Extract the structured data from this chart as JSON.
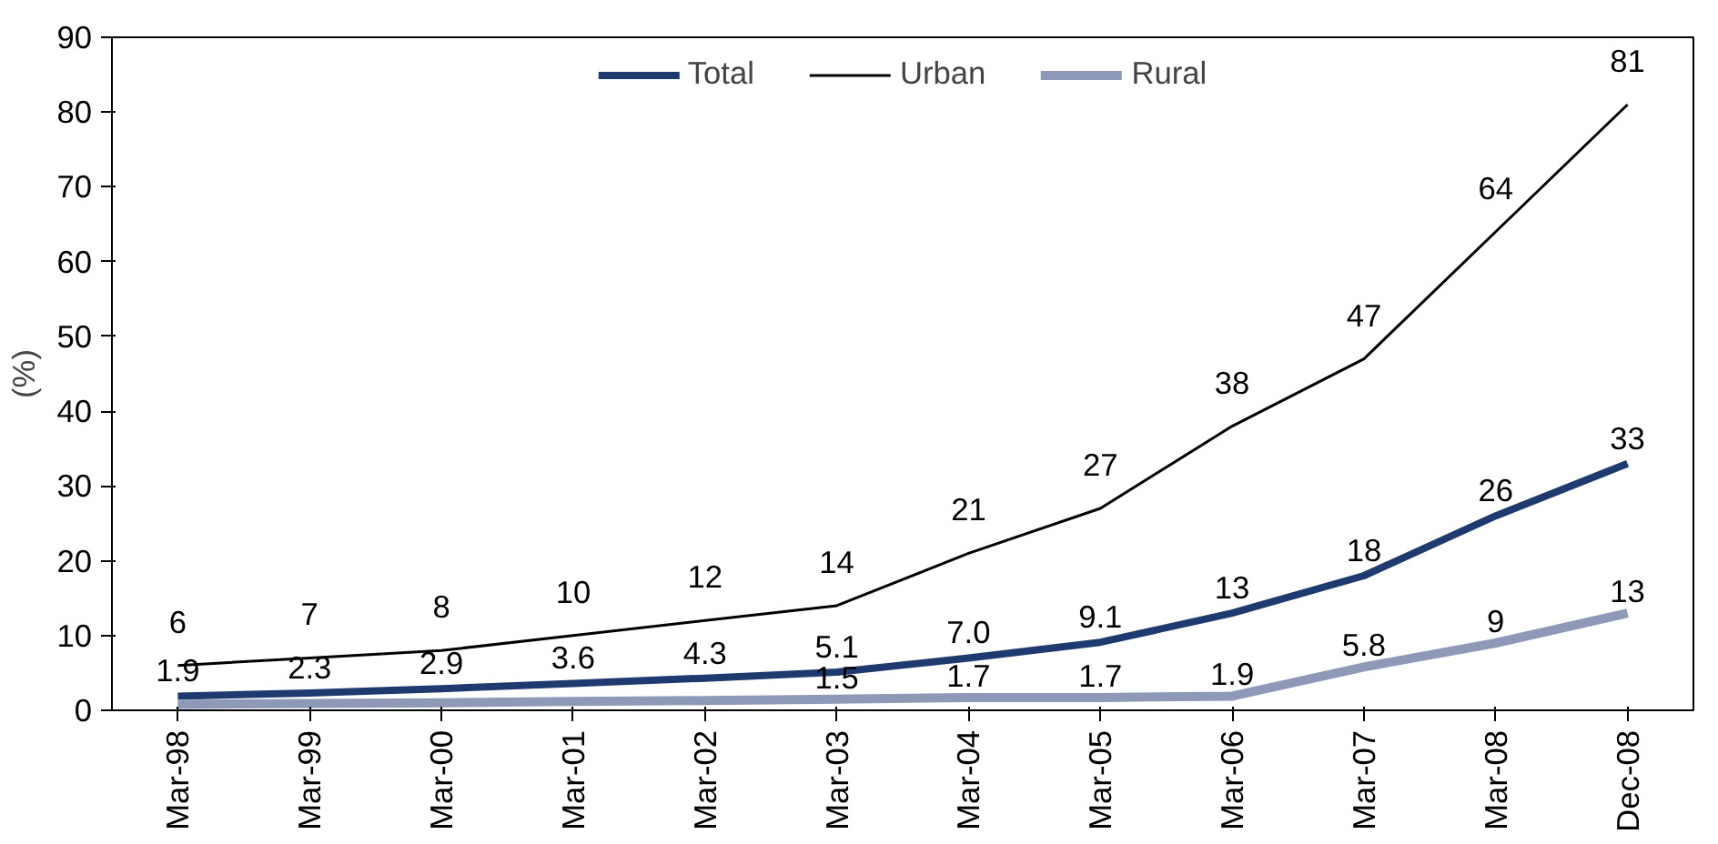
{
  "chart_data": {
    "type": "line",
    "ylabel": "(%)",
    "categories": [
      "Mar-98",
      "Mar-99",
      "Mar-00",
      "Mar-01",
      "Mar-02",
      "Mar-03",
      "Mar-04",
      "Mar-05",
      "Mar-06",
      "Mar-07",
      "Mar-08",
      "Dec-08"
    ],
    "series": [
      {
        "name": "Total",
        "color": "#1f3a6e",
        "values": [
          1.9,
          2.3,
          2.9,
          3.6,
          4.3,
          5.1,
          7.0,
          9.1,
          13,
          18,
          26,
          33
        ],
        "value_labels": [
          "1.9",
          "2.3",
          "2.9",
          "3.6",
          "4.3",
          "5.1",
          "7.0",
          "9.1",
          "13",
          "18",
          "26",
          "33"
        ]
      },
      {
        "name": "Urban",
        "color": "#000000",
        "values": [
          6,
          7,
          8,
          10,
          12,
          14,
          21,
          27,
          38,
          47,
          64,
          81
        ],
        "value_labels": [
          "6",
          "7",
          "8",
          "10",
          "12",
          "14",
          "21",
          "27",
          "38",
          "47",
          "64",
          "81"
        ]
      },
      {
        "name": "Rural",
        "color": "#8e99b8",
        "values": [
          0.8,
          0.9,
          1.0,
          1.2,
          1.3,
          1.5,
          1.7,
          1.7,
          1.9,
          5.8,
          9,
          13
        ],
        "value_labels": [
          null,
          null,
          null,
          null,
          null,
          "1.5",
          "1.7",
          "1.7",
          "1.9",
          "5.8",
          "9",
          "13"
        ]
      }
    ],
    "ylim": [
      0,
      90
    ],
    "yticks": [
      0,
      10,
      20,
      30,
      40,
      50,
      60,
      70,
      80,
      90
    ],
    "grid": false,
    "legend": "top",
    "marker": "none",
    "line_style": "solid"
  }
}
